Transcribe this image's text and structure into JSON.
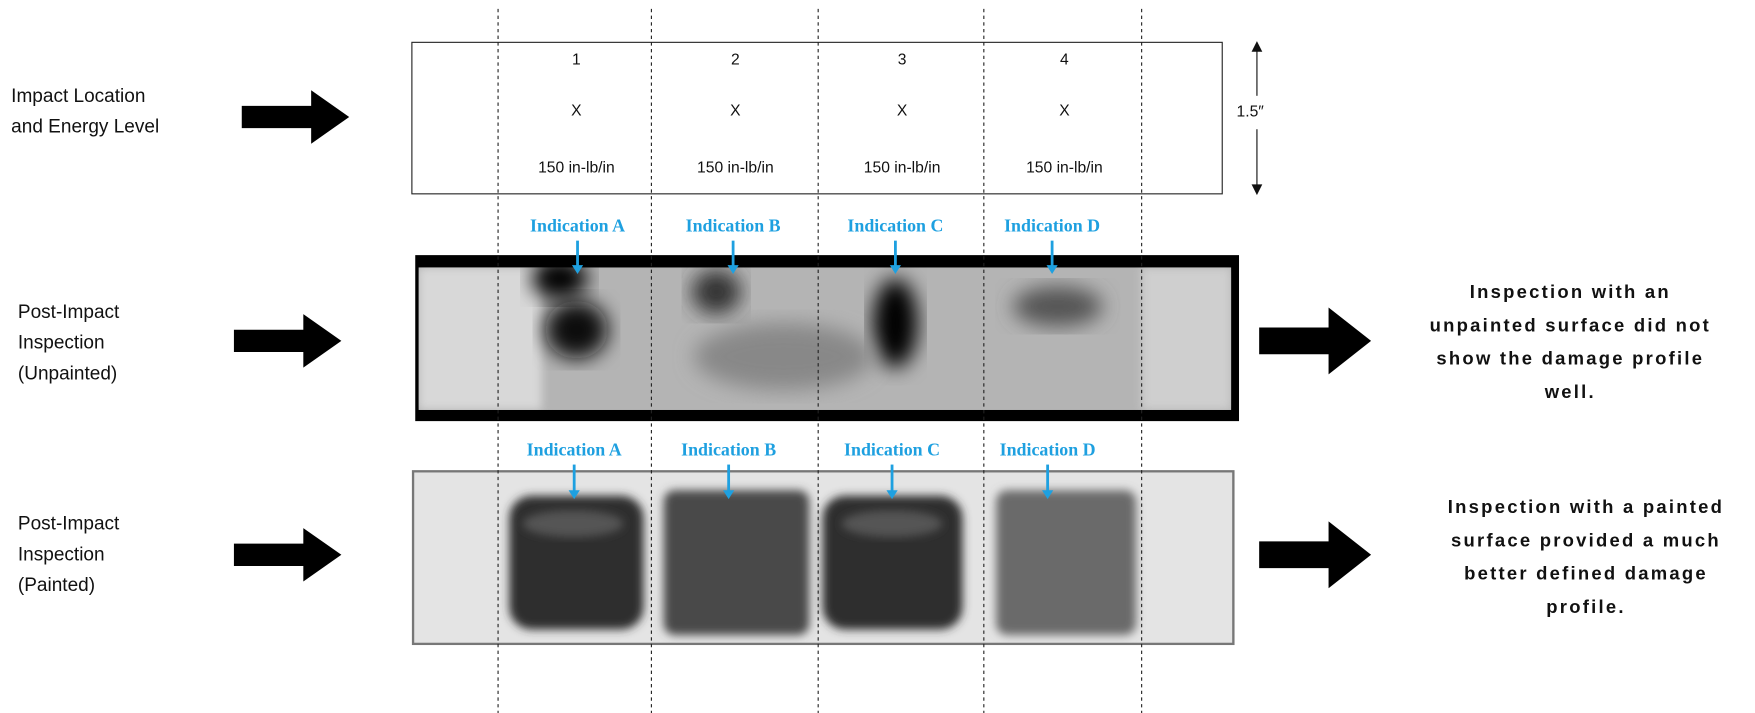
{
  "row_labels": [
    {
      "lines": [
        "Impact Location",
        "and Energy Level"
      ]
    },
    {
      "lines": [
        "Post-Impact",
        "Inspection",
        "(Unpainted)"
      ]
    },
    {
      "lines": [
        "Post-Impact",
        "Inspection",
        "(Painted)"
      ]
    }
  ],
  "impacts": [
    {
      "number": "1",
      "mark": "X",
      "energy": "150 in-lb/in"
    },
    {
      "number": "2",
      "mark": "X",
      "energy": "150 in-lb/in"
    },
    {
      "number": "3",
      "mark": "X",
      "energy": "150 in-lb/in"
    },
    {
      "number": "4",
      "mark": "X",
      "energy": "150 in-lb/in"
    }
  ],
  "dimension": "1.5″",
  "indications_unpainted": [
    "Indication A",
    "Indication B",
    "Indication C",
    "Indication D"
  ],
  "indications_painted": [
    "Indication A",
    "Indication B",
    "Indication C",
    "Indication D"
  ],
  "notes": [
    {
      "lines": [
        "Inspection with an",
        "unpainted surface did not",
        "show the damage profile",
        "well."
      ]
    },
    {
      "lines": [
        "Inspection with a painted",
        "surface provided a much",
        "better defined damage",
        "profile."
      ]
    }
  ]
}
